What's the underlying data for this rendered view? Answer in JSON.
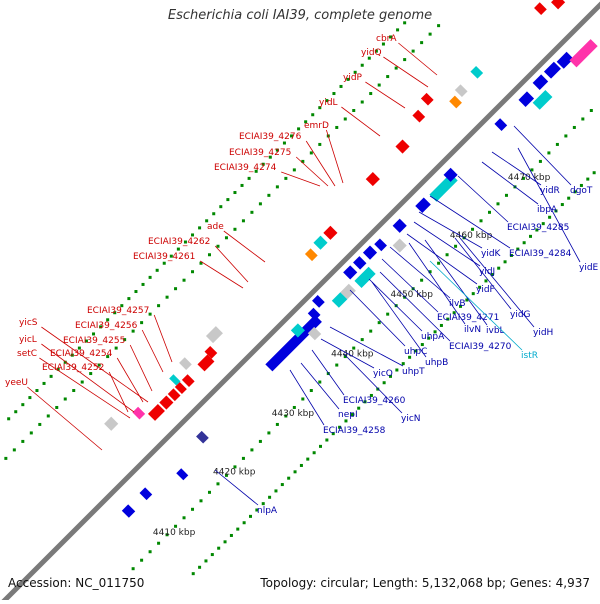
{
  "title": "Escherichia coli IAI39, complete genome",
  "accession": "Accession: NC_011750",
  "topology": "Topology: circular; Length: 5,132,068 bp; Genes: 4,937",
  "colors": {
    "backbone": "#7a7a7a",
    "label_red": "#cc0000",
    "label_blue": "#0000aa",
    "label_cyan": "#00aacc",
    "gene_blue": "#0000dd",
    "gene_red": "#ee0000",
    "gene_cyan": "#00cccc",
    "gene_gray": "#c8c8c8",
    "gene_magenta": "#ff33aa",
    "gene_orange": "#ff8800",
    "gene_navy": "#333399",
    "tick_green": "#008800"
  },
  "kbp_labels": [
    "4410 kbp",
    "4420 kbp",
    "4430 kbp",
    "4440 kbp",
    "4450 kbp",
    "4460 kbp",
    "4470 kbp"
  ],
  "genes_top": [
    "cbrA",
    "yidQ",
    "yidP",
    "yidL",
    "emrD",
    "ECIAI39_4276",
    "ECIAI39_4275",
    "ECIAI39_4274",
    "ade",
    "ECIAI39_4262",
    "ECIAI39_4261",
    "ECIAI39_4257",
    "ECIAI39_4256",
    "yicS",
    "ECIAI39_4255",
    "yicL",
    "ECIAI39_4254",
    "setC",
    "ECIAI39_4252",
    "yeeU"
  ],
  "genes_bottom": [
    "dgoT",
    "yidR",
    "ibpA",
    "ECIAI39_4285",
    "yidE",
    "ECIAI39_4284",
    "yidK",
    "yidJ",
    "yidF",
    "ilvB",
    "yidG",
    "ECIAI39_4271",
    "ilvN",
    "ivbL",
    "yidH",
    "uhpA",
    "ECIAI39_4270",
    "istR",
    "uhpC",
    "uhpB",
    "yicO",
    "uhpT",
    "ECIAI39_4260",
    "yicN",
    "nepI",
    "ECIAI39_4258",
    "nlpA"
  ]
}
